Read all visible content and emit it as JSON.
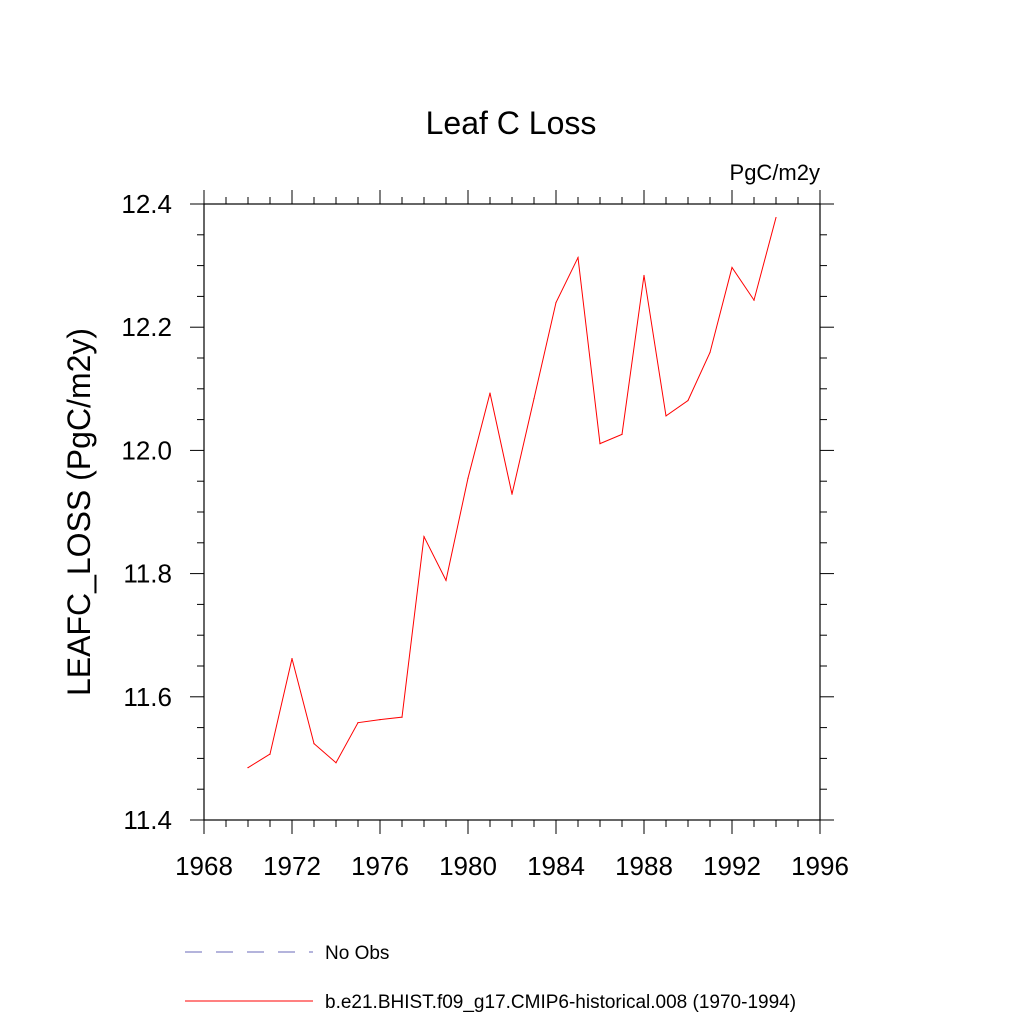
{
  "chart_data": {
    "type": "line",
    "title": "Leaf C Loss",
    "units_label": "PgC/m2y",
    "xlabel": "",
    "ylabel": "LEAFC_LOSS  (PgC/m2y)",
    "xlim": [
      1968,
      1996
    ],
    "ylim": [
      11.4,
      12.4
    ],
    "x_ticks": [
      1968,
      1972,
      1976,
      1980,
      1984,
      1988,
      1992,
      1996
    ],
    "y_ticks": [
      11.4,
      11.6,
      11.8,
      12.0,
      12.2,
      12.4
    ],
    "x_tick_labels": [
      "1968",
      "1972",
      "1976",
      "1980",
      "1984",
      "1988",
      "1992",
      "1996"
    ],
    "y_tick_labels": [
      "11.4",
      "11.6",
      "11.8",
      "12.0",
      "12.2",
      "12.4"
    ],
    "grid": false,
    "legend_position": "bottom",
    "series": [
      {
        "name": "b.e21.BHIST.f09_g17.CMIP6-historical.008 (1970-1994)",
        "color": "#ff0000",
        "style": "solid",
        "x": [
          1970,
          1971,
          1972,
          1973,
          1974,
          1975,
          1976,
          1977,
          1978,
          1979,
          1980,
          1981,
          1982,
          1983,
          1984,
          1985,
          1986,
          1987,
          1988,
          1989,
          1990,
          1991,
          1992,
          1993,
          1994
        ],
        "y": [
          11.485,
          11.507,
          11.662,
          11.524,
          11.493,
          11.558,
          11.563,
          11.567,
          11.86,
          11.789,
          11.955,
          12.093,
          11.929,
          12.084,
          12.24,
          12.313,
          12.011,
          12.026,
          12.284,
          12.056,
          12.081,
          12.159,
          12.297,
          12.244,
          12.378
        ]
      },
      {
        "name": "No Obs",
        "color": "#6a6ab8",
        "style": "dashed",
        "x": [],
        "y": []
      }
    ]
  }
}
